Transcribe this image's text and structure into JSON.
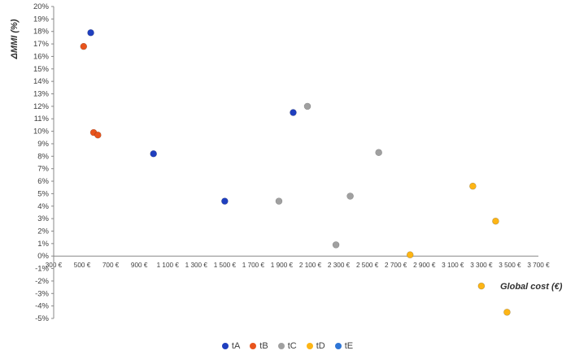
{
  "chart_data": {
    "type": "scatter",
    "title": "",
    "xlabel": "Global cost (€)",
    "ylabel": "ΔMMI (%)",
    "xlim": [
      300,
      3700
    ],
    "ylim": [
      -5,
      20
    ],
    "grid": false,
    "legend_position": "bottom",
    "y_tick_labels": [
      "-5%",
      "-4%",
      "-3%",
      "-2%",
      "-1%",
      "0%",
      "1%",
      "2%",
      "3%",
      "4%",
      "5%",
      "6%",
      "7%",
      "8%",
      "9%",
      "10%",
      "11%",
      "12%",
      "13%",
      "14%",
      "15%",
      "16%",
      "17%",
      "18%",
      "19%",
      "20%"
    ],
    "x_tick_labels": [
      "300 €",
      "500 €",
      "700 €",
      "900 €",
      "1 100 €",
      "1 300 €",
      "1 500 €",
      "1 700 €",
      "1 900 €",
      "2 100 €",
      "2 300 €",
      "2 500 €",
      "2 700 €",
      "2 900 €",
      "3 100 €",
      "3 300 €",
      "3 500 €",
      "3 700 €"
    ],
    "series": [
      {
        "name": "tA",
        "color": "#1f3fbf",
        "points": [
          [
            560,
            17.9
          ],
          [
            1000,
            8.2
          ],
          [
            1500,
            4.4
          ],
          [
            1980,
            11.5
          ]
        ]
      },
      {
        "name": "tB",
        "color": "#e8541c",
        "points": [
          [
            510,
            16.8
          ],
          [
            580,
            9.9
          ],
          [
            610,
            9.7
          ]
        ]
      },
      {
        "name": "tC",
        "color": "#a0a0a0",
        "points": [
          [
            2080,
            12.0
          ],
          [
            1880,
            4.4
          ],
          [
            2380,
            4.8
          ],
          [
            2280,
            0.9
          ],
          [
            2580,
            8.3
          ]
        ]
      },
      {
        "name": "tD",
        "color": "#fdb515",
        "points": [
          [
            2800,
            0.1
          ],
          [
            3240,
            5.6
          ],
          [
            3400,
            2.8
          ],
          [
            3300,
            -2.4
          ],
          [
            3480,
            -4.5
          ]
        ]
      },
      {
        "name": "tE",
        "color": "#2e75d6",
        "points": []
      }
    ]
  }
}
